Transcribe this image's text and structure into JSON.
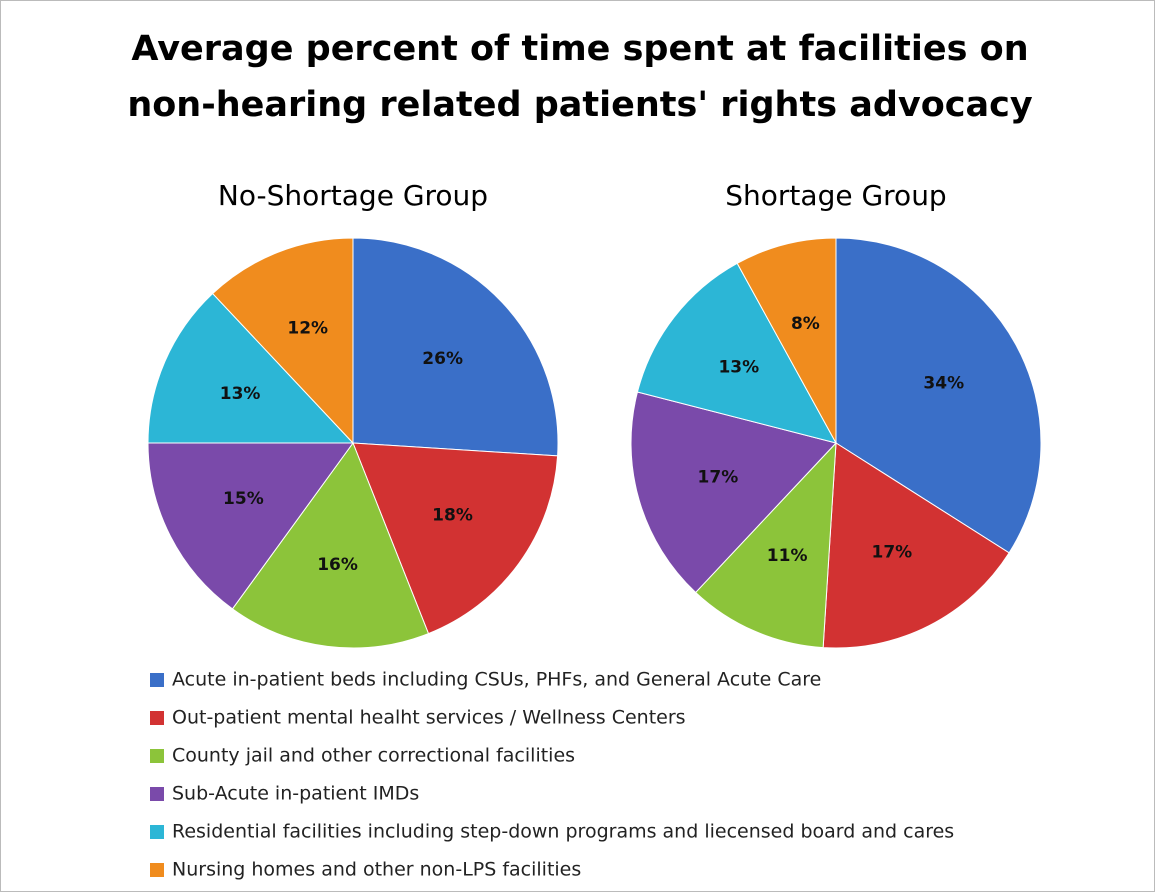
{
  "title": [
    "Average percent of time spent at facilities on",
    "non-hearing related patients' rights advocacy"
  ],
  "categories": [
    "Acute in-patient beds including CSUs, PHFs, and General Acute Care",
    "Out-patient mental healht services / Wellness Centers",
    "County jail and other correctional facilities",
    "Sub-Acute in-patient IMDs",
    "Residential facilities including step-down programs and liecensed board and cares",
    "Nursing homes and other non-LPS facilities"
  ],
  "colors": [
    "#3a6fc8",
    "#d23232",
    "#8cc43a",
    "#7a4aaa",
    "#2cb6d6",
    "#f08c1e"
  ],
  "chart_data": [
    {
      "type": "pie",
      "title": "No-Shortage Group",
      "values": [
        26,
        18,
        16,
        15,
        13,
        12
      ],
      "value_labels": [
        "26%",
        "18%",
        "16%",
        "15%",
        "13%",
        "12%"
      ]
    },
    {
      "type": "pie",
      "title": "Shortage Group",
      "values": [
        34,
        17,
        11,
        17,
        13,
        8
      ],
      "value_labels": [
        "34%",
        "17%",
        "11%",
        "17%",
        "13%",
        "8%"
      ]
    }
  ]
}
